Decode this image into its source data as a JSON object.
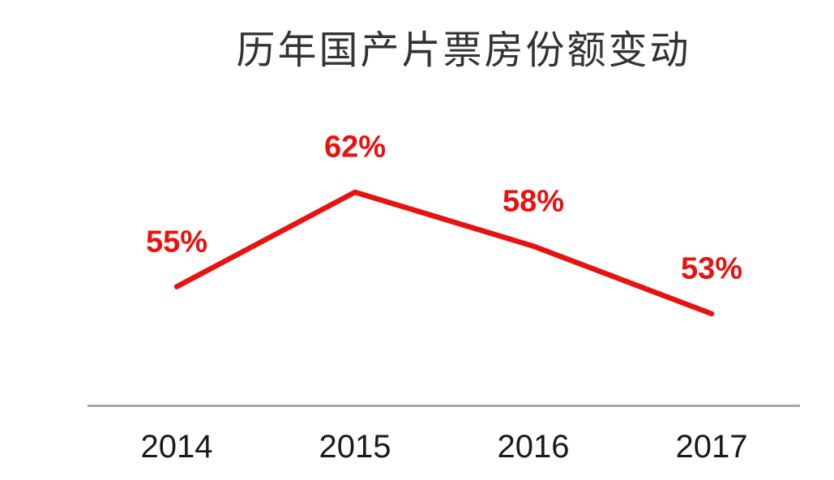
{
  "chart_data": {
    "type": "line",
    "title": "历年国产片票房份额变动",
    "categories": [
      "2014",
      "2015",
      "2016",
      "2017"
    ],
    "series": [
      {
        "name": "国产片票房份额",
        "values": [
          55,
          62,
          58,
          53
        ]
      }
    ],
    "values": [
      55,
      62,
      58,
      53
    ],
    "point_labels": [
      "55%",
      "62%",
      "58%",
      "53%"
    ],
    "unit": "%",
    "xlabel": "",
    "ylabel": "",
    "ylim": [
      50,
      65
    ],
    "grid": false,
    "legend": null,
    "y_axis_visible": false,
    "colors": {
      "line": "#e8120f",
      "data_label": "#e8120f",
      "axis_line": "#a6a6a6",
      "axis_label": "#1a1a1a",
      "title": "#333333",
      "background": "#ffffff"
    }
  }
}
